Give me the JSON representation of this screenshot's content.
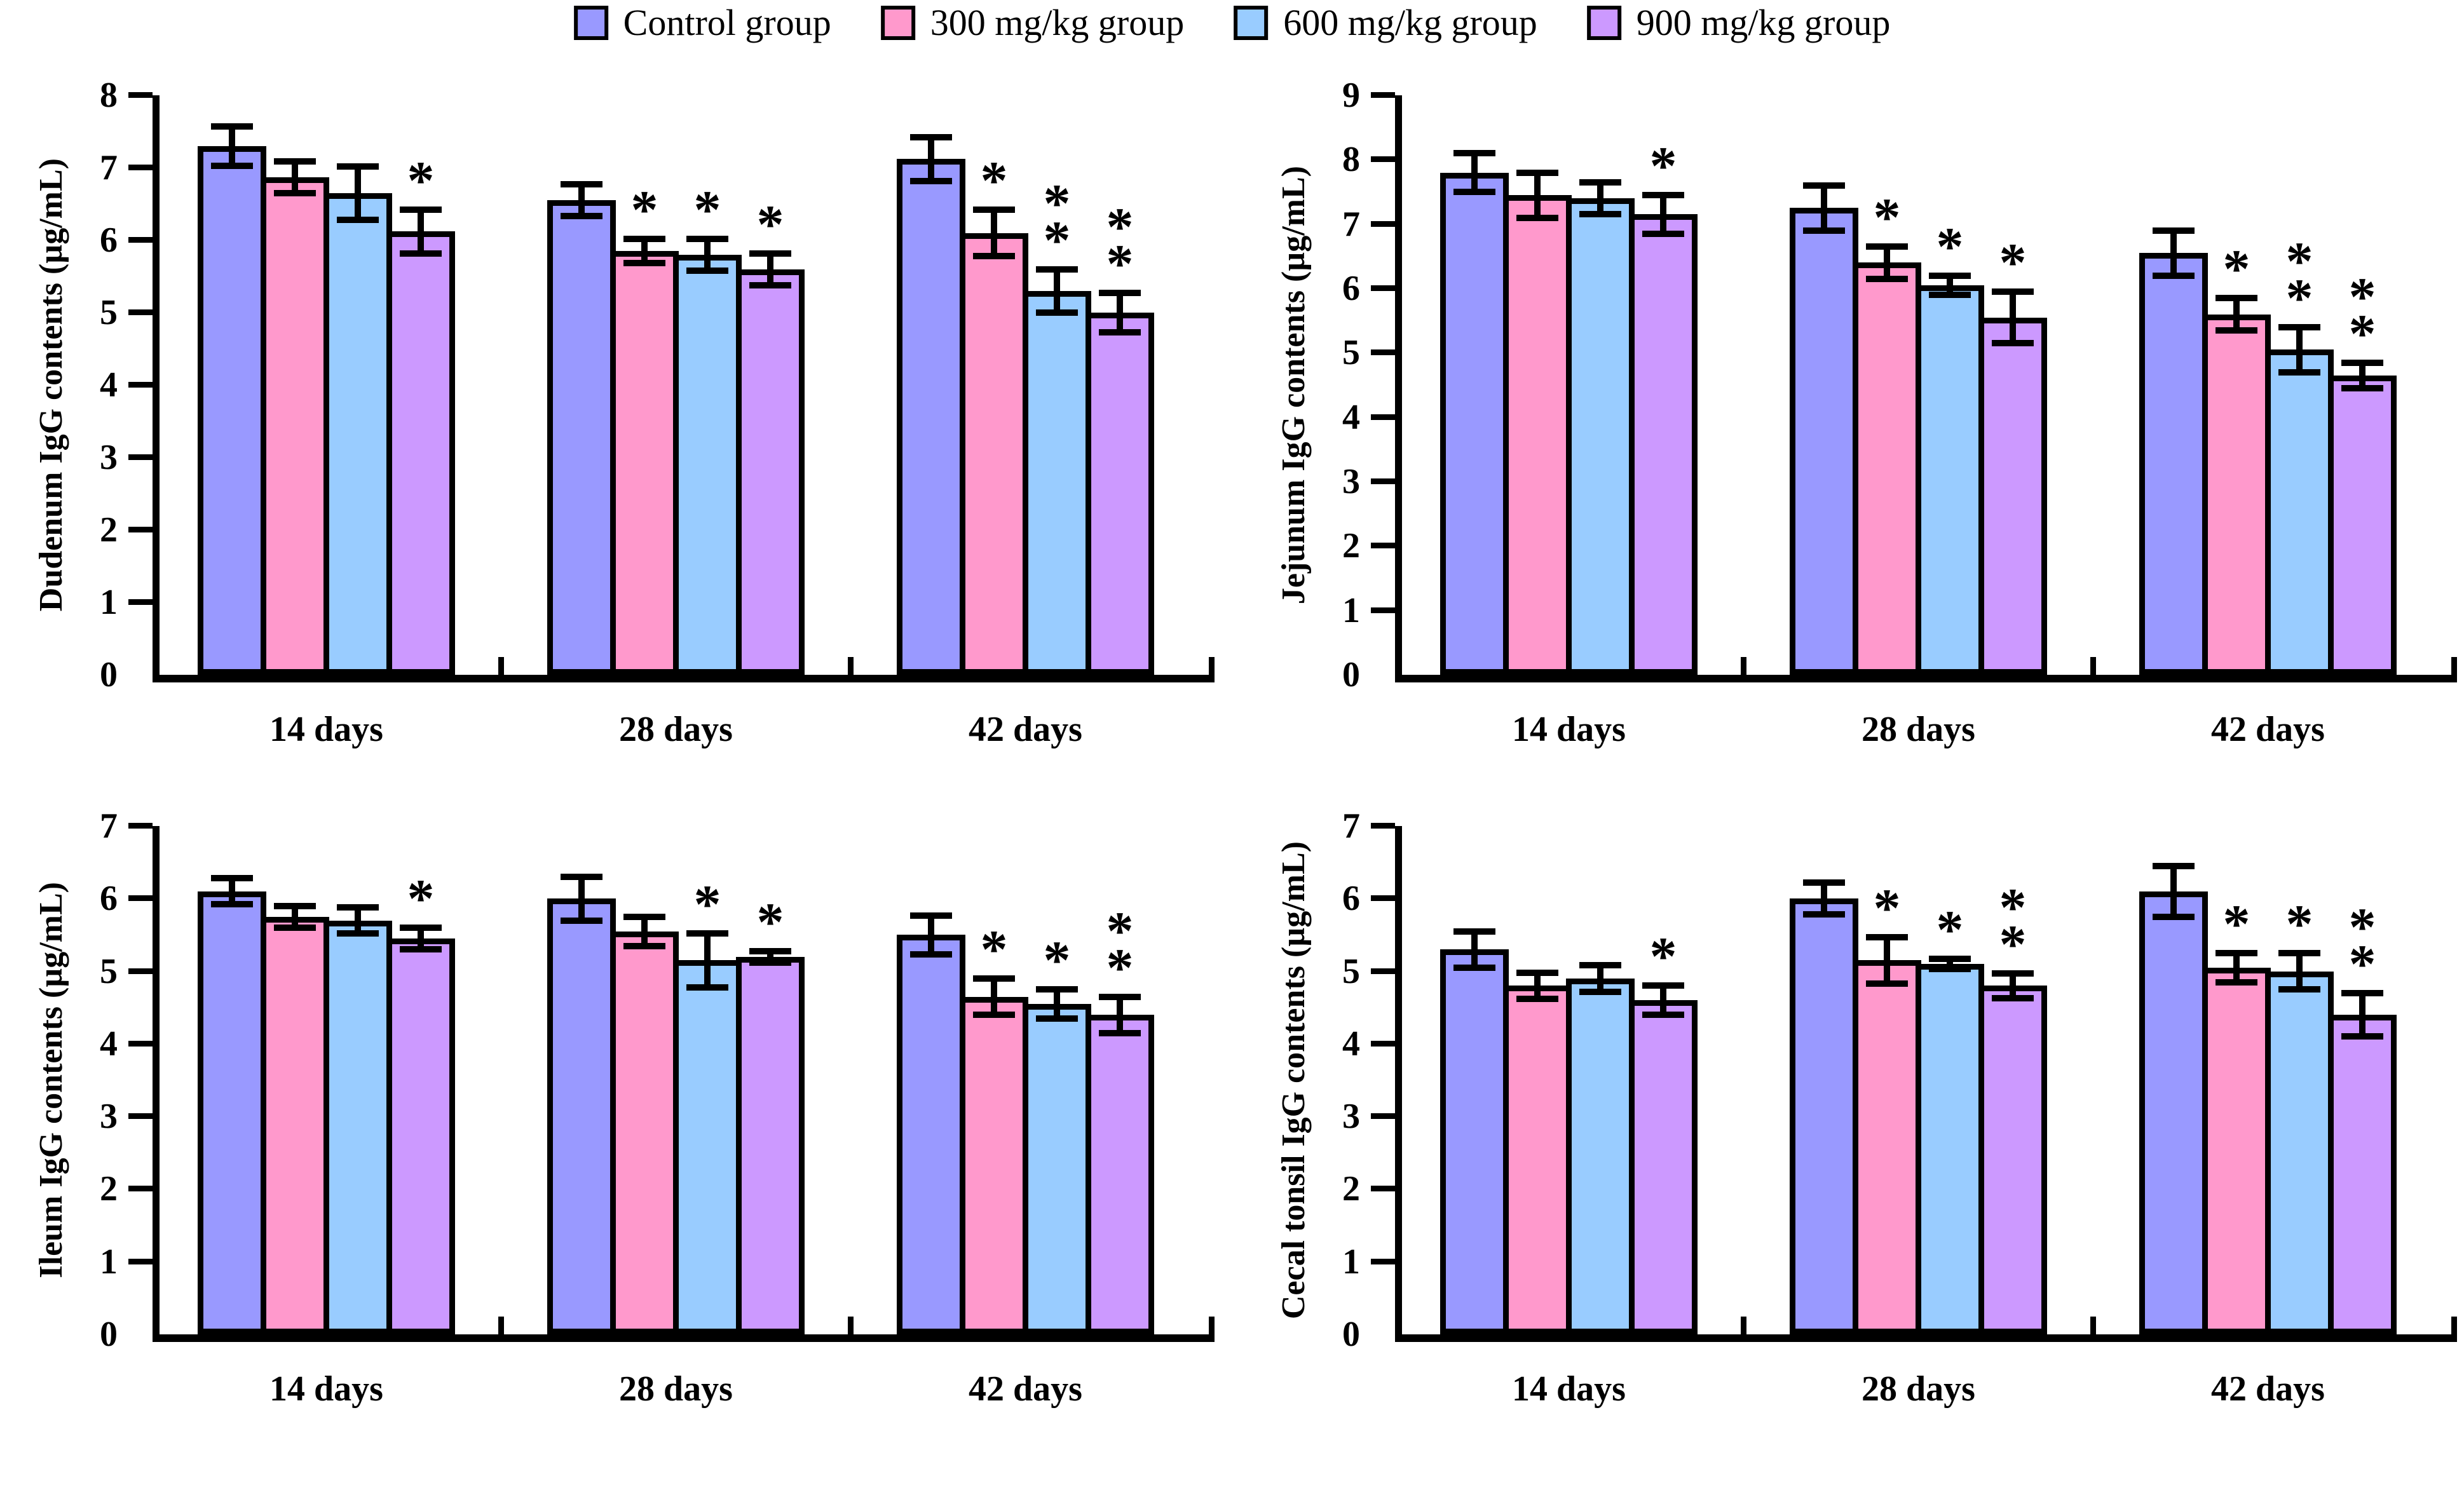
{
  "legend": {
    "items": [
      {
        "label": "Control group",
        "color": "#9999FF"
      },
      {
        "label": "300 mg/kg group",
        "color": "#FF99CC"
      },
      {
        "label": "600 mg/kg group",
        "color": "#99CCFF"
      },
      {
        "label": "900 mg/kg group",
        "color": "#CC99FF"
      }
    ]
  },
  "chart_data": [
    {
      "id": "duodenum",
      "type": "bar",
      "ylabel": "Dudenum IgG contents (µg/mL)",
      "ylim": [
        0,
        8
      ],
      "ytick_step": 1,
      "grid": false,
      "legend_position": "top-shared",
      "categories": [
        "14 days",
        "28 days",
        "42 days"
      ],
      "series": [
        {
          "name": "Control group",
          "color": "#9999FF",
          "values": [
            7.3,
            6.55,
            7.12
          ],
          "errors": [
            0.27,
            0.22,
            0.3
          ],
          "sig": [
            "",
            "",
            ""
          ]
        },
        {
          "name": "300 mg/kg group",
          "color": "#FF99CC",
          "values": [
            6.87,
            5.85,
            6.1
          ],
          "errors": [
            0.22,
            0.17,
            0.32
          ],
          "sig": [
            "",
            "*",
            "*"
          ]
        },
        {
          "name": "600 mg/kg group",
          "color": "#99CCFF",
          "values": [
            6.65,
            5.8,
            5.3
          ],
          "errors": [
            0.37,
            0.22,
            0.3
          ],
          "sig": [
            "",
            "*",
            "**"
          ]
        },
        {
          "name": "900 mg/kg group",
          "color": "#CC99FF",
          "values": [
            6.12,
            5.6,
            5.0
          ],
          "errors": [
            0.3,
            0.22,
            0.27
          ],
          "sig": [
            "*",
            "*",
            "**"
          ]
        }
      ]
    },
    {
      "id": "jejunum",
      "type": "bar",
      "ylabel": "Jejunum IgG contents (µg/mL)",
      "ylim": [
        0,
        9
      ],
      "ytick_step": 1,
      "grid": false,
      "legend_position": "top-shared",
      "categories": [
        "14 days",
        "28 days",
        "42 days"
      ],
      "series": [
        {
          "name": "Control group",
          "color": "#9999FF",
          "values": [
            7.8,
            7.25,
            6.55
          ],
          "errors": [
            0.3,
            0.35,
            0.35
          ],
          "sig": [
            "",
            "",
            ""
          ]
        },
        {
          "name": "300 mg/kg group",
          "color": "#FF99CC",
          "values": [
            7.45,
            6.4,
            5.6
          ],
          "errors": [
            0.35,
            0.25,
            0.25
          ],
          "sig": [
            "",
            "*",
            "*"
          ]
        },
        {
          "name": "600 mg/kg group",
          "color": "#99CCFF",
          "values": [
            7.4,
            6.05,
            5.05
          ],
          "errors": [
            0.25,
            0.15,
            0.35
          ],
          "sig": [
            "",
            "*",
            "**"
          ]
        },
        {
          "name": "900 mg/kg group",
          "color": "#CC99FF",
          "values": [
            7.15,
            5.55,
            4.65
          ],
          "errors": [
            0.3,
            0.4,
            0.2
          ],
          "sig": [
            "*",
            "*",
            "**"
          ]
        }
      ]
    },
    {
      "id": "ileum",
      "type": "bar",
      "ylabel": "Ileum IgG contents (µg/mL)",
      "ylim": [
        0,
        7
      ],
      "ytick_step": 1,
      "grid": false,
      "legend_position": "top-shared",
      "categories": [
        "14 days",
        "28 days",
        "42 days"
      ],
      "series": [
        {
          "name": "Control group",
          "color": "#9999FF",
          "values": [
            6.1,
            6.0,
            5.5
          ],
          "errors": [
            0.18,
            0.3,
            0.27
          ],
          "sig": [
            "",
            "",
            ""
          ]
        },
        {
          "name": "300 mg/kg group",
          "color": "#FF99CC",
          "values": [
            5.75,
            5.55,
            4.65
          ],
          "errors": [
            0.15,
            0.2,
            0.25
          ],
          "sig": [
            "",
            "",
            "*"
          ]
        },
        {
          "name": "600 mg/kg group",
          "color": "#99CCFF",
          "values": [
            5.7,
            5.15,
            4.55
          ],
          "errors": [
            0.18,
            0.37,
            0.2
          ],
          "sig": [
            "",
            "*",
            "*"
          ]
        },
        {
          "name": "900 mg/kg group",
          "color": "#CC99FF",
          "values": [
            5.45,
            5.2,
            4.4
          ],
          "errors": [
            0.15,
            0.08,
            0.25
          ],
          "sig": [
            "*",
            "*",
            "**"
          ]
        }
      ]
    },
    {
      "id": "cecal-tonsil",
      "type": "bar",
      "ylabel": "Cecal tonsil IgG contents (µg/mL)",
      "ylim": [
        0,
        7
      ],
      "ytick_step": 1,
      "grid": false,
      "legend_position": "top-shared",
      "categories": [
        "14 days",
        "28 days",
        "42 days"
      ],
      "series": [
        {
          "name": "Control group",
          "color": "#9999FF",
          "values": [
            5.3,
            6.0,
            6.1
          ],
          "errors": [
            0.25,
            0.22,
            0.35
          ],
          "sig": [
            "",
            "",
            ""
          ]
        },
        {
          "name": "300 mg/kg group",
          "color": "#FF99CC",
          "values": [
            4.8,
            5.15,
            5.05
          ],
          "errors": [
            0.18,
            0.32,
            0.2
          ],
          "sig": [
            "",
            "*",
            "*"
          ]
        },
        {
          "name": "600 mg/kg group",
          "color": "#99CCFF",
          "values": [
            4.9,
            5.1,
            5.0
          ],
          "errors": [
            0.18,
            0.07,
            0.25
          ],
          "sig": [
            "",
            "*",
            "*"
          ]
        },
        {
          "name": "900 mg/kg group",
          "color": "#CC99FF",
          "values": [
            4.6,
            4.8,
            4.4
          ],
          "errors": [
            0.2,
            0.17,
            0.3
          ],
          "sig": [
            "*",
            "**",
            "**"
          ]
        }
      ]
    }
  ]
}
